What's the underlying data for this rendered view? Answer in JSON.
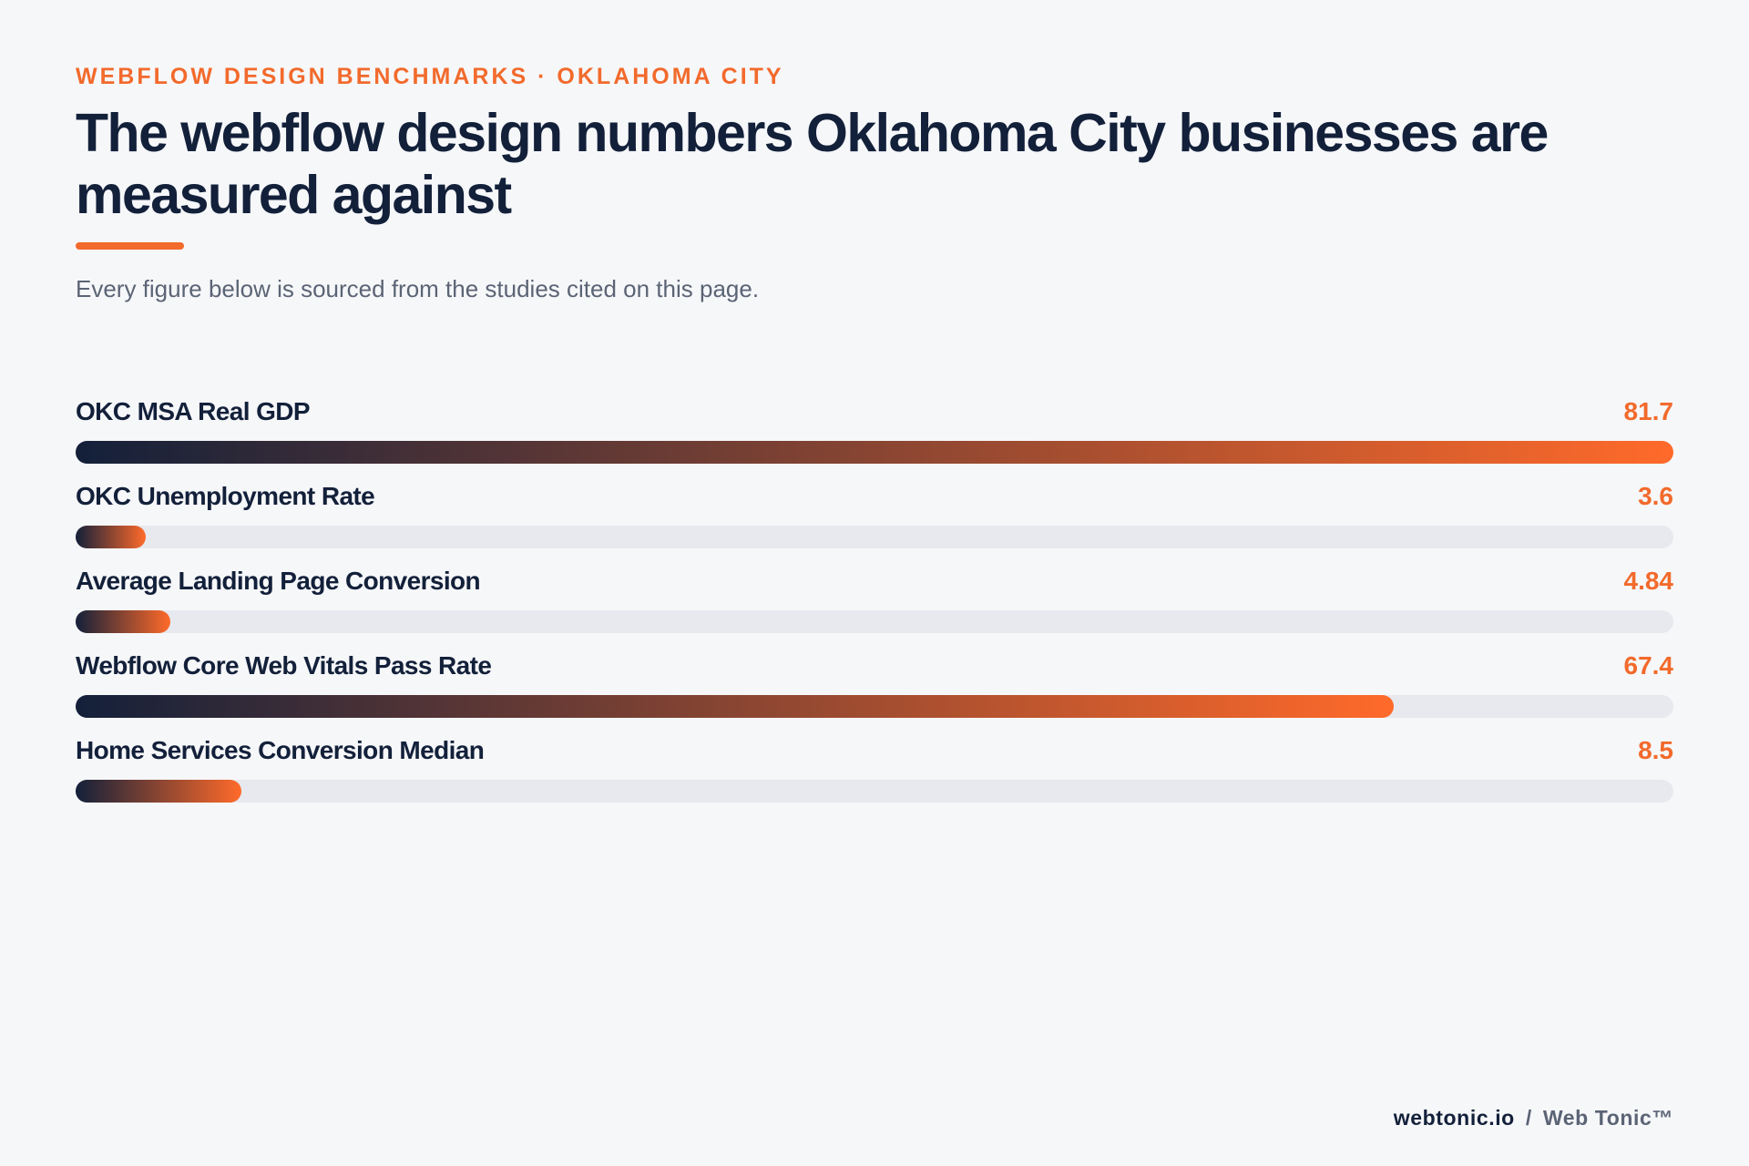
{
  "header": {
    "eyebrow": "WEBFLOW DESIGN BENCHMARKS · OKLAHOMA CITY",
    "title": "The webflow design numbers Oklahoma City businesses are measured against",
    "subtitle": "Every figure below is sourced from the studies cited on this page."
  },
  "colors": {
    "accent": "#f26a2c",
    "navy": "#13203a",
    "track": "#e7e9ef",
    "background": "#f6f7f9"
  },
  "chart_data": {
    "type": "bar",
    "orientation": "horizontal",
    "categories": [
      "OKC MSA Real GDP",
      "OKC Unemployment Rate",
      "Average Landing Page Conversion",
      "Webflow Core Web Vitals Pass Rate",
      "Home Services Conversion Median"
    ],
    "values": [
      81.7,
      3.6,
      4.84,
      67.4,
      8.5
    ],
    "value_labels": [
      "81.7",
      "3.6",
      "4.84",
      "67.4",
      "8.5"
    ],
    "xlim": [
      0,
      81.7
    ],
    "grid": false,
    "title": "",
    "xlabel": "",
    "ylabel": ""
  },
  "footer": {
    "site": "webtonic.io",
    "separator": "/",
    "brand": "Web Tonic™"
  }
}
